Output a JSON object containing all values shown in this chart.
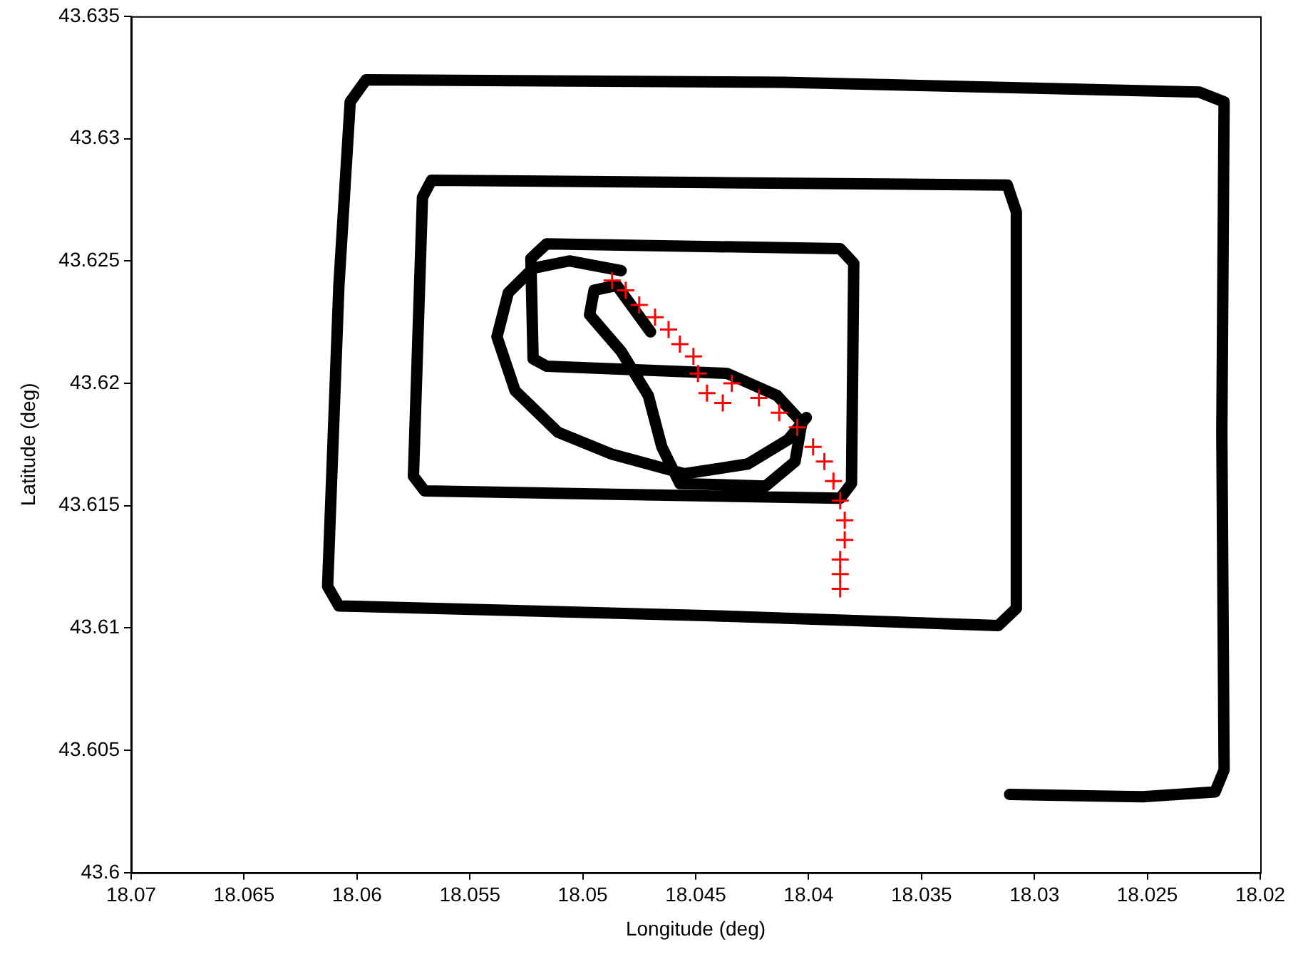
{
  "chart_data": {
    "type": "line",
    "xlabel": "Longitude (deg)",
    "ylabel": "Latitude (deg)",
    "xlim": [
      18.07,
      18.02
    ],
    "xticks": [
      18.07,
      18.065,
      18.06,
      18.055,
      18.05,
      18.045,
      18.04,
      18.035,
      18.03,
      18.025,
      18.02
    ],
    "ylim": [
      43.6,
      43.635
    ],
    "yticks": [
      43.6,
      43.605,
      43.61,
      43.615,
      43.62,
      43.625,
      43.63,
      43.635
    ],
    "grid": false,
    "legend": false,
    "series": [
      {
        "color": "#000000",
        "marker": "none",
        "line_style": "solid",
        "x": [
          18.0311,
          18.0252,
          18.022,
          18.0216,
          18.0217,
          18.0216,
          18.0227,
          18.0411,
          18.0596,
          18.0603,
          18.0608,
          18.0613,
          18.0608,
          18.0443,
          18.0316,
          18.0308,
          18.0308,
          18.0312,
          18.0443,
          18.0567,
          18.0571,
          18.0575,
          18.057,
          18.0386,
          18.0381,
          18.038,
          18.0386,
          18.0516,
          18.0523,
          18.0522,
          18.0516,
          18.0436,
          18.0414,
          18.0403,
          18.0406,
          18.0419,
          18.0457,
          18.0465,
          18.0471,
          18.0483,
          18.0497,
          18.0495,
          18.0485,
          18.047
        ],
        "values": [
          43.6032,
          43.6031,
          43.6033,
          43.6042,
          43.618,
          43.6315,
          43.6319,
          43.6323,
          43.6324,
          43.6315,
          43.624,
          43.6117,
          43.6109,
          43.6105,
          43.6101,
          43.6108,
          43.627,
          43.6281,
          43.6282,
          43.6283,
          43.6276,
          43.6162,
          43.6156,
          43.6153,
          43.6159,
          43.6249,
          43.6255,
          43.6257,
          43.6251,
          43.621,
          43.6207,
          43.6204,
          43.6195,
          43.6184,
          43.6168,
          43.6158,
          43.6159,
          43.6174,
          43.6195,
          43.6213,
          43.6228,
          43.6238,
          43.624,
          43.6221
        ]
      },
      {
        "color": "#000000",
        "marker": "none",
        "line_style": "solid",
        "x": [
          18.0483,
          18.0506,
          18.0522,
          18.0533,
          18.0538,
          18.053,
          18.0511,
          18.0487,
          18.0455,
          18.0427,
          18.0409,
          18.0401
        ],
        "values": [
          43.6246,
          43.625,
          43.6247,
          43.6237,
          43.6219,
          43.6197,
          43.618,
          43.6171,
          43.6163,
          43.6167,
          43.6177,
          43.6186
        ]
      },
      {
        "type": "scatter",
        "color": "#ff0000",
        "marker": "cross",
        "x": [
          18.0487,
          18.0481,
          18.0475,
          18.0468,
          18.0462,
          18.0457,
          18.0451,
          18.0449,
          18.0445,
          18.0438,
          18.0434,
          18.0422,
          18.0413,
          18.0405,
          18.0398,
          18.0393,
          18.0389,
          18.0386,
          18.0384,
          18.0384,
          18.0386,
          18.0386,
          18.0386
        ],
        "values": [
          43.6242,
          43.6238,
          43.6232,
          43.6227,
          43.6222,
          43.6216,
          43.6211,
          43.6204,
          43.6196,
          43.6192,
          43.62,
          43.6194,
          43.6188,
          43.6182,
          43.6174,
          43.6168,
          43.616,
          43.6152,
          43.6144,
          43.6136,
          43.6128,
          43.6122,
          43.6116
        ]
      }
    ]
  }
}
